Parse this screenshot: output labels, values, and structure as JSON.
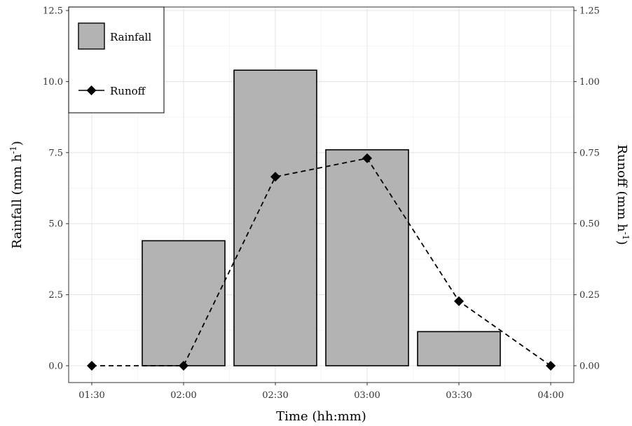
{
  "chart_data": {
    "type": "bar",
    "title": "",
    "x": [
      "01:30",
      "02:00",
      "02:30",
      "03:00",
      "03:30",
      "04:00"
    ],
    "xlabel": "Time (hh:mm)",
    "ylabel_left": {
      "base": "Rainfall (mm h",
      "exp": "-1",
      "close": ")"
    },
    "ylabel_right": {
      "base": "Runoff (mm h",
      "exp": "-1",
      "close": ")"
    },
    "ylim_left": [
      0,
      12.5
    ],
    "ylim_right": [
      0,
      1.25
    ],
    "yticks_left": [
      "0.0",
      "2.5",
      "5.0",
      "7.5",
      "10.0",
      "12.5"
    ],
    "yticks_right": [
      "0.00",
      "0.25",
      "0.50",
      "0.75",
      "1.00",
      "1.25"
    ],
    "grid": true,
    "legend_position": "top-left",
    "series": [
      {
        "name": "Rainfall",
        "type": "bar",
        "axis": "left",
        "x": [
          "02:00",
          "02:30",
          "03:00",
          "03:30"
        ],
        "values": [
          4.4,
          10.4,
          7.6,
          1.2
        ],
        "color": "#b3b3b3"
      },
      {
        "name": "Runoff",
        "type": "line",
        "axis": "right",
        "line_style": "dashed",
        "marker": "diamond",
        "x": [
          "01:30",
          "02:00",
          "02:30",
          "03:00",
          "03:30",
          "04:00"
        ],
        "values": [
          0.0,
          0.0,
          0.665,
          0.73,
          0.227,
          0.0
        ],
        "color": "#000000"
      }
    ]
  }
}
